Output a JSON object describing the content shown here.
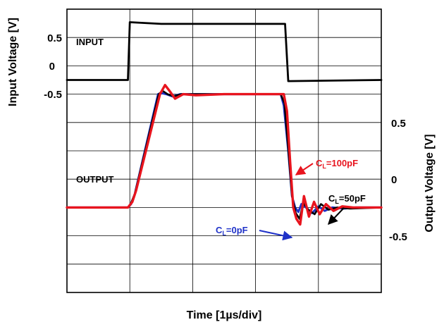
{
  "chart_data": {
    "type": "line",
    "title": "",
    "xlabel": "Time [1µs/div]",
    "ylabel_left": "Input Voltage [V]",
    "ylabel_right": "Output Voltage [V]",
    "x_unit": "div",
    "xlim": [
      0,
      5
    ],
    "x_divisions": 5,
    "y_divisions": 10,
    "grid": true,
    "input_axis": {
      "ticks": [
        "0.5",
        "0",
        "-0.5"
      ],
      "values": [
        0.5,
        0,
        -0.5
      ],
      "ylim": [
        -0.75,
        0.75
      ]
    },
    "output_axis": {
      "ticks": [
        "0.5",
        "0",
        "-0.5"
      ],
      "values": [
        0.5,
        0,
        -0.5
      ],
      "ylim": [
        -1.0,
        1.0
      ]
    },
    "series": [
      {
        "name": "",
        "axis": "input",
        "color": "#000000",
        "x": [
          0,
          0.97,
          1.0,
          1.5,
          3.4,
          3.47,
          3.52,
          5
        ],
        "y": [
          -0.5,
          -0.5,
          0.52,
          0.49,
          0.49,
          0.49,
          -0.52,
          -0.5
        ]
      },
      {
        "name": "CL=0pF",
        "axis": "output",
        "color": "#1f32c8",
        "x": [
          0,
          0.97,
          1.02,
          1.08,
          1.45,
          1.5,
          1.58,
          1.68,
          1.8,
          2.0,
          2.4,
          3.4,
          3.45,
          3.52,
          3.58,
          3.63,
          3.68,
          3.73,
          3.8,
          3.9,
          4.0,
          4.1,
          4.22,
          4.4,
          4.6,
          5
        ],
        "y": [
          -0.5,
          -0.5,
          -0.47,
          -0.38,
          0.5,
          0.51,
          0.5,
          0.48,
          0.5,
          0.5,
          0.5,
          0.5,
          0.4,
          0.0,
          -0.4,
          -0.5,
          -0.54,
          -0.47,
          -0.5,
          -0.55,
          -0.49,
          -0.53,
          -0.5,
          -0.51,
          -0.5,
          -0.5
        ]
      },
      {
        "name": "CL=50pF",
        "axis": "output",
        "color": "#000000",
        "x": [
          0,
          0.97,
          1.02,
          1.08,
          1.46,
          1.52,
          1.6,
          1.7,
          1.82,
          2.0,
          3.4,
          3.46,
          3.52,
          3.58,
          3.64,
          3.7,
          3.76,
          3.84,
          3.94,
          4.04,
          4.16,
          4.3,
          4.5,
          5
        ],
        "y": [
          -0.5,
          -0.5,
          -0.46,
          -0.38,
          0.5,
          0.53,
          0.5,
          0.48,
          0.5,
          0.5,
          0.5,
          0.42,
          0.02,
          -0.4,
          -0.55,
          -0.6,
          -0.46,
          -0.52,
          -0.56,
          -0.47,
          -0.52,
          -0.5,
          -0.51,
          -0.5
        ]
      },
      {
        "name": "CL=100pF",
        "axis": "output",
        "color": "#e8141e",
        "x": [
          0,
          0.97,
          1.04,
          1.1,
          1.48,
          1.56,
          1.63,
          1.72,
          1.85,
          2.05,
          2.5,
          3.45,
          3.5,
          3.55,
          3.6,
          3.65,
          3.71,
          3.77,
          3.85,
          3.93,
          4.02,
          4.12,
          4.24,
          4.38,
          4.55,
          5
        ],
        "y": [
          -0.5,
          -0.5,
          -0.45,
          -0.35,
          0.5,
          0.58,
          0.53,
          0.46,
          0.5,
          0.49,
          0.5,
          0.5,
          0.35,
          -0.1,
          -0.5,
          -0.6,
          -0.65,
          -0.4,
          -0.58,
          -0.45,
          -0.56,
          -0.47,
          -0.53,
          -0.49,
          -0.5,
          -0.5
        ]
      }
    ],
    "annotations": {
      "input": "INPUT",
      "output": "OUTPUT",
      "cl100_main": "C",
      "cl100_sub": "L",
      "cl100_rest": "=100pF",
      "cl50_main": "C",
      "cl50_sub": "L",
      "cl50_rest": "=50pF",
      "cl0_main": "C",
      "cl0_sub": "L",
      "cl0_rest": "=0pF"
    }
  }
}
